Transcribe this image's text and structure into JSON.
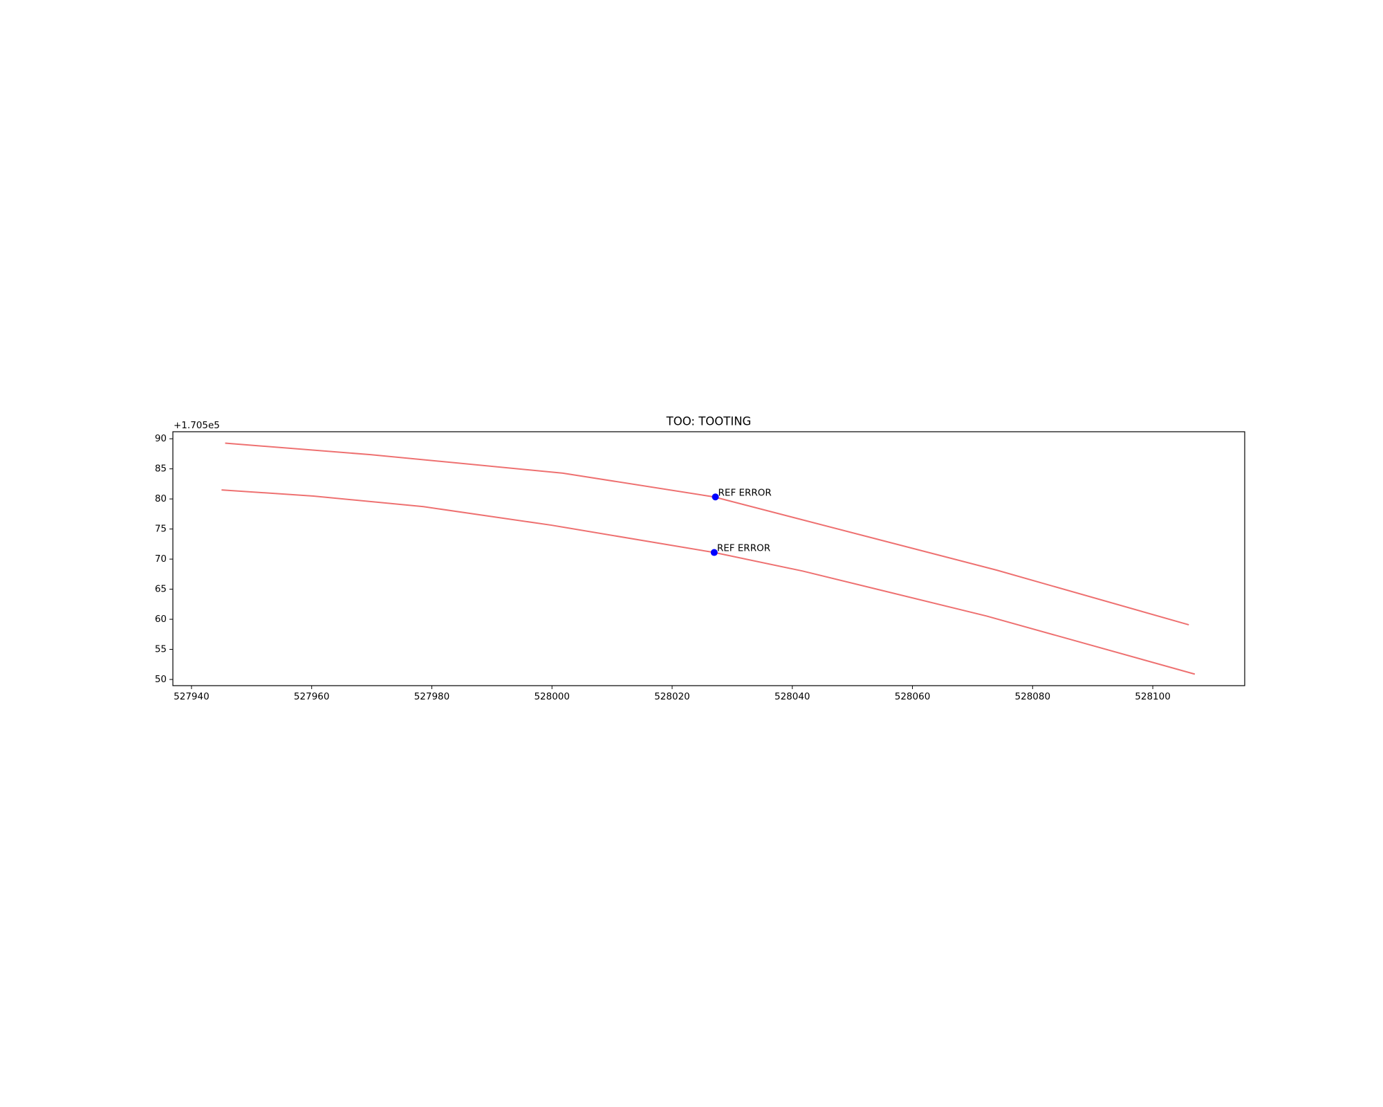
{
  "chart_data": {
    "type": "line",
    "title": "TOO: TOOTING",
    "y_offset_label": "+1.705e5",
    "xlim": [
      527936.9,
      528115.3
    ],
    "ylim": [
      48.97,
      91.17
    ],
    "xticks": [
      527940,
      527960,
      527980,
      528000,
      528020,
      528040,
      528060,
      528080,
      528100
    ],
    "yticks": [
      50,
      55,
      60,
      65,
      70,
      75,
      80,
      85,
      90
    ],
    "series": [
      {
        "color": "#ee7070",
        "x": [
          527945.6,
          527969.8,
          528001.8,
          528027.0,
          528074.0,
          528106.0
        ],
        "values": [
          89.27,
          87.36,
          84.29,
          80.33,
          68.17,
          59.08
        ]
      },
      {
        "color": "#ee7070",
        "x": [
          527945.0,
          527960.3,
          527978.6,
          527999.9,
          528027.0,
          528041.7,
          528072.3,
          528107.0
        ],
        "values": [
          81.5,
          80.48,
          78.72,
          75.64,
          71.1,
          68.02,
          60.55,
          50.88
        ]
      }
    ],
    "points": {
      "color": "#0000ff",
      "x": [
        528027.2,
        528027.0
      ],
      "values": [
        80.33,
        71.1
      ],
      "labels": [
        "REF ERROR",
        "REF ERROR"
      ]
    }
  }
}
